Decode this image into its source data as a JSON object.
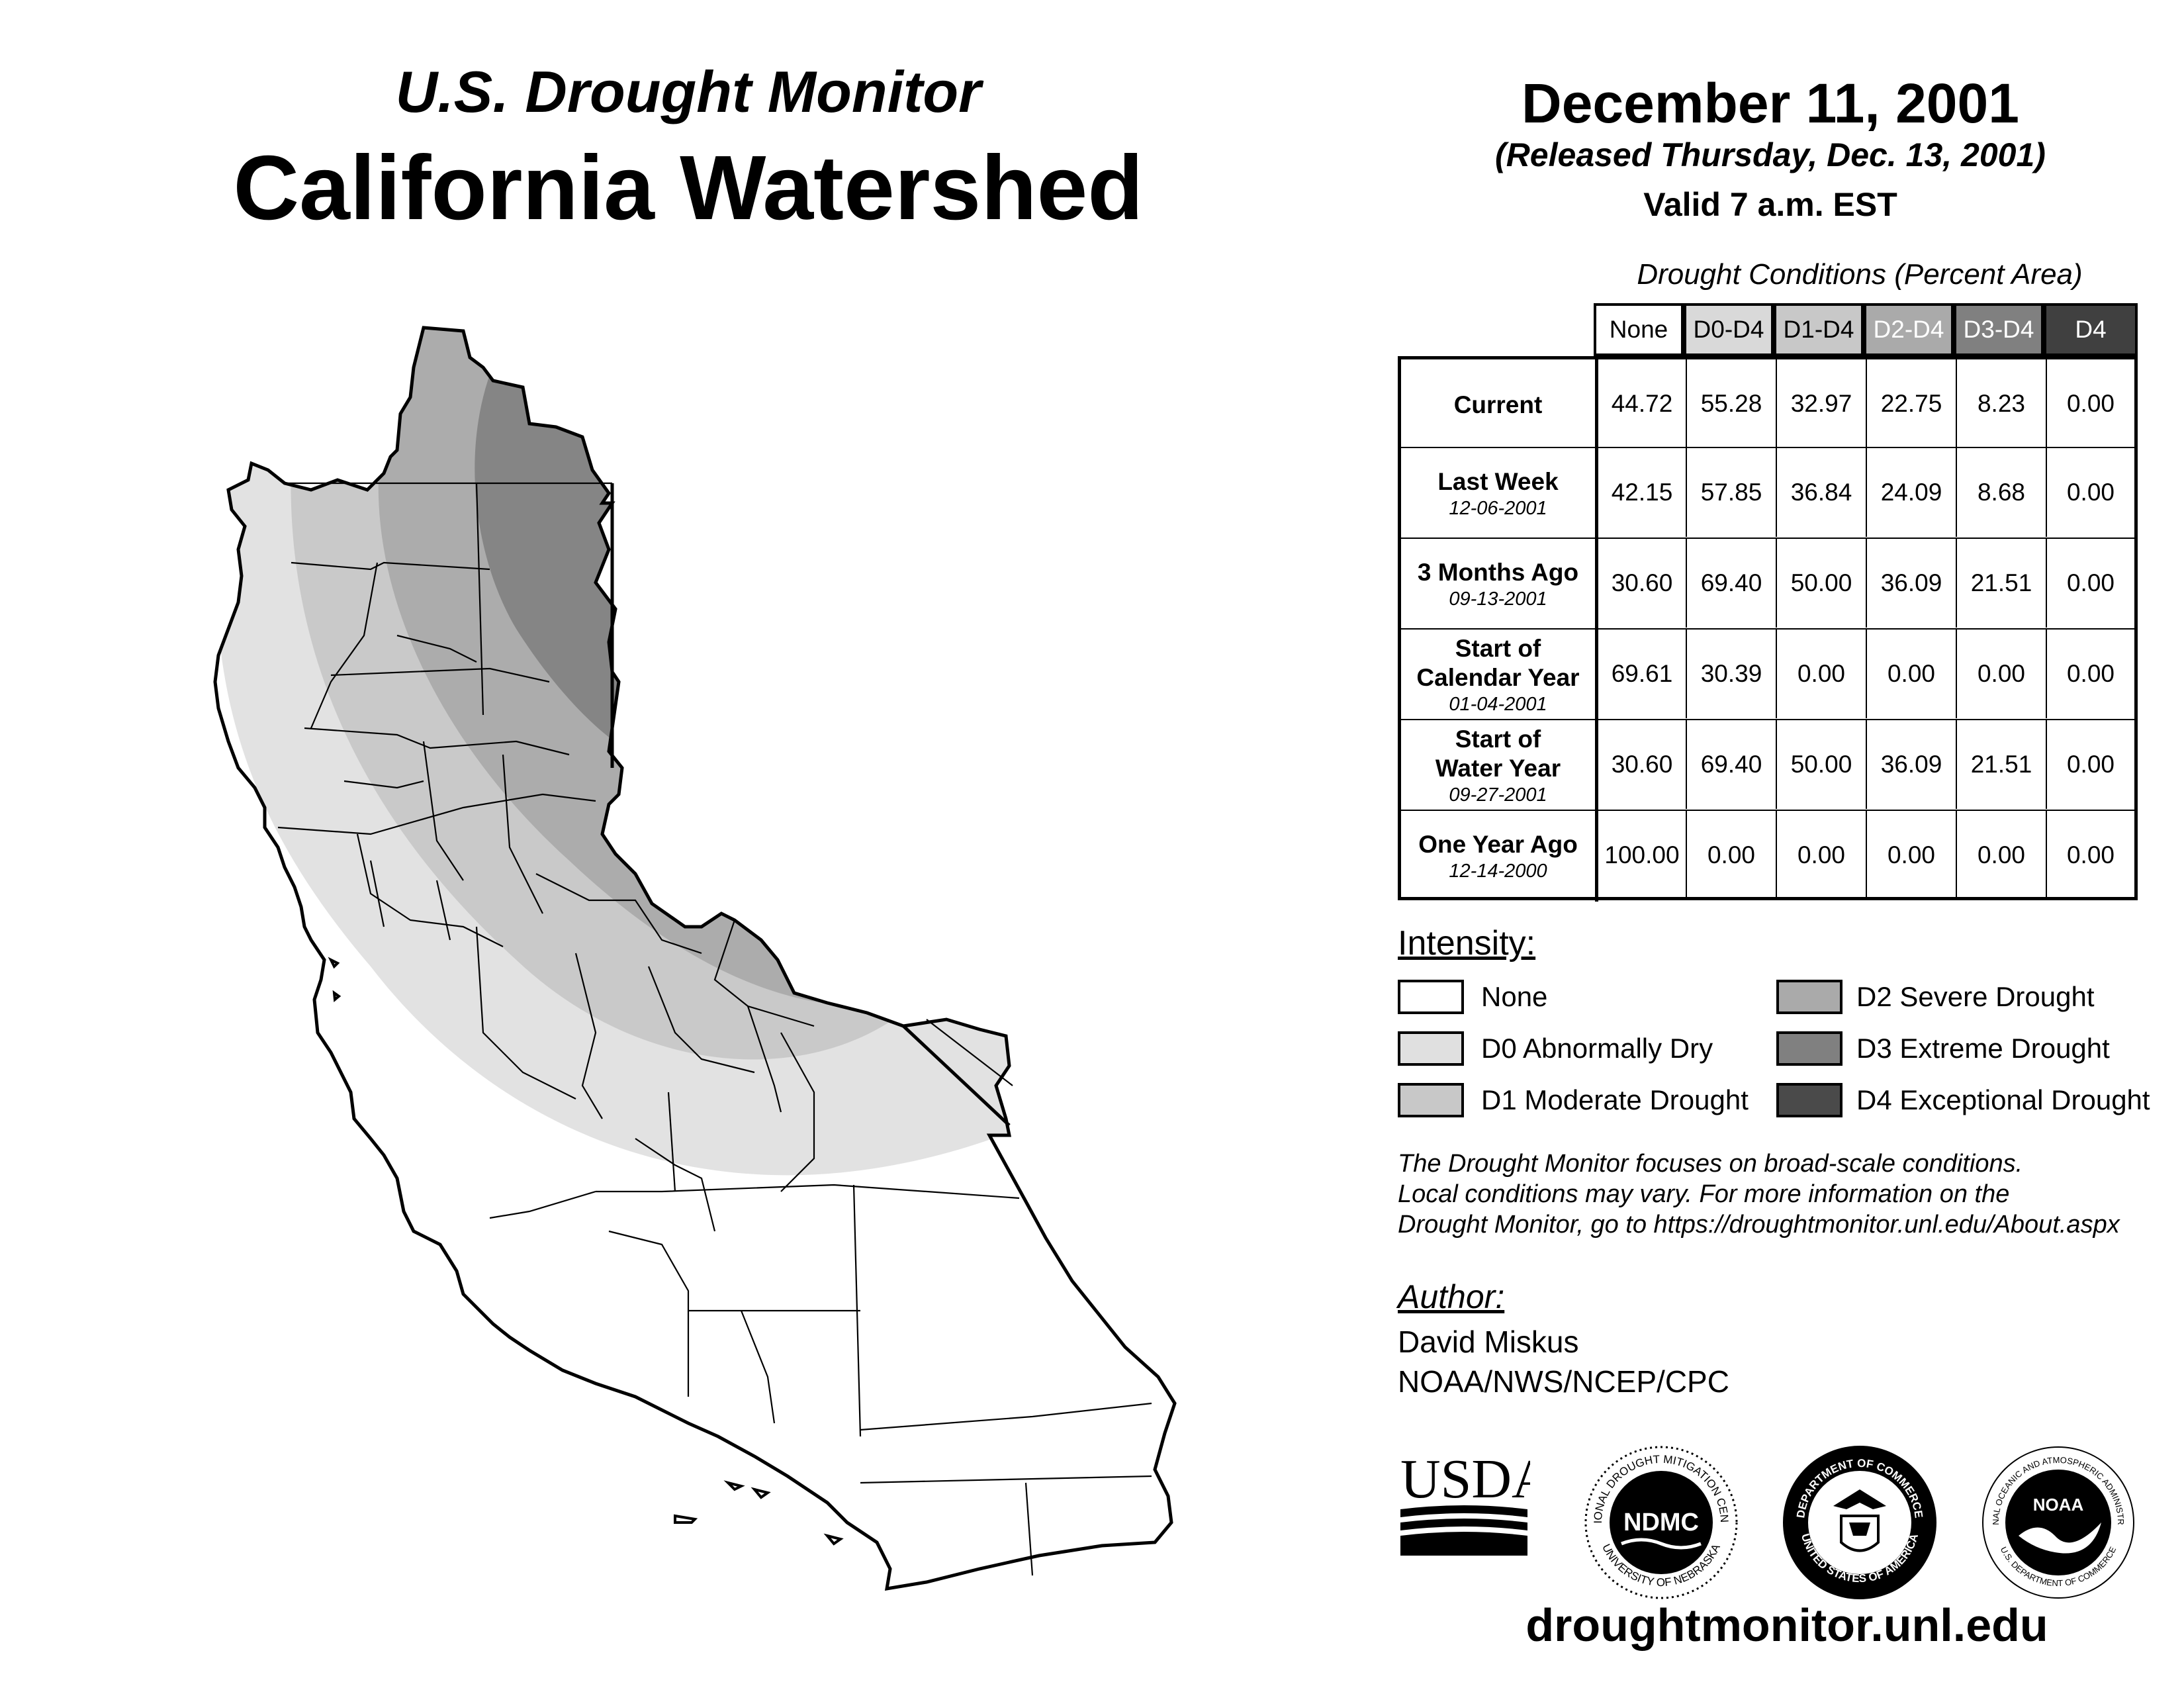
{
  "header": {
    "subtitle": "U.S. Drought Monitor",
    "title": "California Watershed",
    "date": "December 11, 2001",
    "released": "(Released Thursday, Dec. 13, 2001)",
    "valid": "Valid 7 a.m. EST"
  },
  "table": {
    "caption": "Drought Conditions (Percent Area)",
    "columns": [
      "None",
      "D0-D4",
      "D1-D4",
      "D2-D4",
      "D3-D4",
      "D4"
    ],
    "column_colors": [
      "#ffffff",
      "#d9d9d9",
      "#c8c8c8",
      "#aaaaaa",
      "#808080",
      "#404040"
    ],
    "rows": [
      {
        "label": "Current",
        "label2": "",
        "date": "",
        "values": [
          "44.72",
          "55.28",
          "32.97",
          "22.75",
          "8.23",
          "0.00"
        ]
      },
      {
        "label": "Last Week",
        "label2": "",
        "date": "12-06-2001",
        "values": [
          "42.15",
          "57.85",
          "36.84",
          "24.09",
          "8.68",
          "0.00"
        ]
      },
      {
        "label": "3 Months Ago",
        "label2": "",
        "date": "09-13-2001",
        "values": [
          "30.60",
          "69.40",
          "50.00",
          "36.09",
          "21.51",
          "0.00"
        ]
      },
      {
        "label": "Start of",
        "label2": "Calendar Year",
        "date": "01-04-2001",
        "values": [
          "69.61",
          "30.39",
          "0.00",
          "0.00",
          "0.00",
          "0.00"
        ]
      },
      {
        "label": "Start of",
        "label2": "Water Year",
        "date": "09-27-2001",
        "values": [
          "30.60",
          "69.40",
          "50.00",
          "36.09",
          "21.51",
          "0.00"
        ]
      },
      {
        "label": "One Year Ago",
        "label2": "",
        "date": "12-14-2000",
        "values": [
          "100.00",
          "0.00",
          "0.00",
          "0.00",
          "0.00",
          "0.00"
        ]
      }
    ]
  },
  "legend": {
    "heading": "Intensity:",
    "items": [
      {
        "label": "None",
        "color": "#ffffff"
      },
      {
        "label": "D0 Abnormally Dry",
        "color": "#e0e0e0"
      },
      {
        "label": "D1 Moderate Drought",
        "color": "#c8c8c8"
      },
      {
        "label": "D2 Severe Drought",
        "color": "#aaaaaa"
      },
      {
        "label": "D3 Extreme Drought",
        "color": "#808080"
      },
      {
        "label": "D4 Exceptional Drought",
        "color": "#4a4a4a"
      }
    ]
  },
  "note": {
    "line1": "The Drought Monitor focuses on broad-scale conditions.",
    "line2": "Local conditions may vary. For more information on the",
    "line3": "Drought Monitor, go to https://droughtmonitor.unl.edu/About.aspx"
  },
  "author": {
    "heading": "Author:",
    "name": "David Miskus",
    "org": "NOAA/NWS/NCEP/CPC"
  },
  "logos": {
    "usda": "USDA",
    "ndmc": "NDMC",
    "ndmc_ring_top": "NATIONAL DROUGHT MITIGATION CENTER",
    "ndmc_ring_bottom": "UNIVERSITY OF NEBRASKA",
    "doc_ring_top": "DEPARTMENT OF COMMERCE",
    "doc_ring_bottom": "UNITED STATES OF AMERICA",
    "noaa": "NOAA",
    "noaa_ring_top": "NATIONAL OCEANIC AND ATMOSPHERIC ADMINISTRATION",
    "noaa_ring_bottom": "U.S. DEPARTMENT OF COMMERCE"
  },
  "footer": {
    "url": "droughtmonitor.unl.edu"
  }
}
